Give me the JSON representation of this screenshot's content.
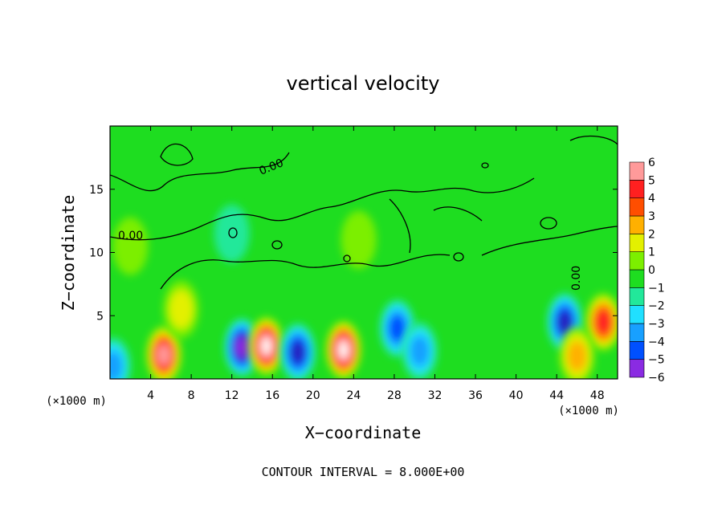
{
  "chart_data": {
    "type": "heatmap",
    "title": "vertical velocity",
    "xlabel": "X−coordinate",
    "ylabel": "Z−coordinate",
    "x_unit": "(×1000 m)",
    "y_unit": "(×1000 m)",
    "xlim": [
      0,
      50
    ],
    "ylim": [
      0,
      20
    ],
    "x_ticks": [
      4,
      8,
      12,
      16,
      20,
      24,
      28,
      32,
      36,
      40,
      44,
      48
    ],
    "y_ticks": [
      5,
      10,
      15
    ],
    "colorbar": {
      "levels": [
        -6,
        -5,
        -4,
        -3,
        -2,
        -1,
        0,
        1,
        2,
        3,
        4,
        5,
        6
      ],
      "labels": [
        "−6",
        "−5",
        "−4",
        "−3",
        "−2",
        "−1",
        "0",
        "1",
        "2",
        "3",
        "4",
        "5",
        "6"
      ],
      "colors": [
        "#8a2be2",
        "#2020c0",
        "#0050ff",
        "#18a0ff",
        "#20e0ff",
        "#22e89a",
        "#1edd20",
        "#7cef00",
        "#e3f000",
        "#ffb000",
        "#ff4e00",
        "#ff2020",
        "#ff9a9a"
      ]
    },
    "contour_labels": [
      "0.00",
      "0.00",
      "0.00"
    ],
    "features": [
      {
        "x": 5.3,
        "z": 1.9,
        "w": 5.5
      },
      {
        "x": 13.0,
        "z": 2.5,
        "w": -5.5
      },
      {
        "x": 15.4,
        "z": 2.6,
        "w": 6.5
      },
      {
        "x": 18.5,
        "z": 2.1,
        "w": -4.5
      },
      {
        "x": 23.0,
        "z": 2.3,
        "w": 6.5
      },
      {
        "x": 28.3,
        "z": 4.0,
        "w": -3.5
      },
      {
        "x": 30.5,
        "z": 2.2,
        "w": -3.0
      },
      {
        "x": 44.8,
        "z": 4.5,
        "w": -4.5
      },
      {
        "x": 48.6,
        "z": 4.5,
        "w": 5.0
      },
      {
        "x": 46.0,
        "z": 1.8,
        "w": 2.5
      },
      {
        "x": 0.3,
        "z": 1.0,
        "w": -3.0
      },
      {
        "x": 7.0,
        "z": 5.5,
        "w": 1.5
      },
      {
        "x": 2.0,
        "z": 10.5,
        "w": 1.0
      },
      {
        "x": 24.5,
        "z": 11.0,
        "w": 1.2
      },
      {
        "x": 12.0,
        "z": 11.5,
        "w": -1.0
      }
    ]
  },
  "footer": {
    "note": "CONTOUR INTERVAL = 8.000E+00"
  }
}
